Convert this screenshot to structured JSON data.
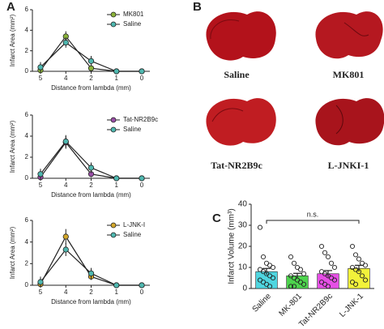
{
  "panel_labels": [
    "A",
    "B",
    "C"
  ],
  "images": {
    "labels": [
      "Saline",
      "MK801",
      "Tat-NR2B9c",
      "L-JNKI-1"
    ]
  },
  "chart_data": [
    {
      "type": "line",
      "xlabel": "Distance from lambda (mm)",
      "ylabel": "Infarct Area (mm²)",
      "categories": [
        "5",
        "4",
        "2",
        "1",
        "0"
      ],
      "ylim": [
        0,
        6
      ],
      "yticks": [
        0,
        2,
        4,
        6
      ],
      "legend": "upper right",
      "series": [
        {
          "name": "MK801",
          "color": "#8cb43a",
          "values": [
            0.1,
            3.4,
            0.3,
            0,
            0
          ],
          "errors": [
            0.2,
            0.5,
            0.4,
            0,
            0
          ]
        },
        {
          "name": "Saline",
          "color": "#4fb8b0",
          "values": [
            0.4,
            2.8,
            1.0,
            0,
            0
          ],
          "errors": [
            0.5,
            0.5,
            0.5,
            0,
            0
          ]
        }
      ]
    },
    {
      "type": "line",
      "xlabel": "Distance from lambda (mm)",
      "ylabel": "Infarct Area (mm²)",
      "categories": [
        "5",
        "4",
        "2",
        "1",
        "0"
      ],
      "ylim": [
        0,
        6
      ],
      "yticks": [
        0,
        2,
        4,
        6
      ],
      "legend": "upper right",
      "series": [
        {
          "name": "Tat-NR2B9c",
          "color": "#9b4fa8",
          "values": [
            0.1,
            3.4,
            0.4,
            0,
            0
          ],
          "errors": [
            0.2,
            0.6,
            0.3,
            0,
            0
          ]
        },
        {
          "name": "Saline",
          "color": "#4fb8b0",
          "values": [
            0.4,
            3.5,
            1.0,
            0,
            0
          ],
          "errors": [
            0.5,
            0.6,
            0.5,
            0,
            0
          ]
        }
      ]
    },
    {
      "type": "line",
      "xlabel": "Distance from lambda (mm)",
      "ylabel": "Infarct Area (mm²)",
      "categories": [
        "5",
        "4",
        "2",
        "1",
        "0"
      ],
      "ylim": [
        0,
        6
      ],
      "yticks": [
        0,
        2,
        4,
        6
      ],
      "legend": "upper right",
      "series": [
        {
          "name": "L-JNK-I",
          "color": "#d4a82a",
          "values": [
            0.1,
            4.5,
            0.8,
            0,
            0
          ],
          "errors": [
            0.2,
            0.7,
            0.3,
            0,
            0
          ]
        },
        {
          "name": "Saline",
          "color": "#4fb8b0",
          "values": [
            0.3,
            3.3,
            1.1,
            0,
            0
          ],
          "errors": [
            0.5,
            0.6,
            0.5,
            0,
            0
          ]
        }
      ]
    },
    {
      "type": "bar",
      "ylabel": "Infarct Volume (mm³)",
      "categories": [
        "Saline",
        "MK-801",
        "Tat-NR2B9c",
        "L-JNK-1"
      ],
      "values": [
        8,
        6,
        7,
        9.5
      ],
      "errors": [
        1.5,
        1.2,
        1.5,
        1.5
      ],
      "colors": [
        "#4fd6e0",
        "#4dd44d",
        "#e64fe6",
        "#f2f23a"
      ],
      "ylim": [
        0,
        40
      ],
      "yticks": [
        0,
        10,
        20,
        30,
        40
      ],
      "annotation": "n.s.",
      "points": [
        [
          29,
          15,
          12,
          11,
          10,
          9,
          8,
          7,
          6,
          5,
          4,
          3,
          2,
          1
        ],
        [
          15,
          12,
          10,
          9,
          7,
          6,
          5,
          4,
          3,
          2,
          1,
          1
        ],
        [
          20,
          17,
          15,
          12,
          10,
          8,
          7,
          6,
          5,
          4,
          3,
          2,
          1
        ],
        [
          20,
          16,
          14,
          12,
          11,
          10,
          9,
          8,
          6,
          4,
          3,
          2
        ]
      ]
    }
  ]
}
